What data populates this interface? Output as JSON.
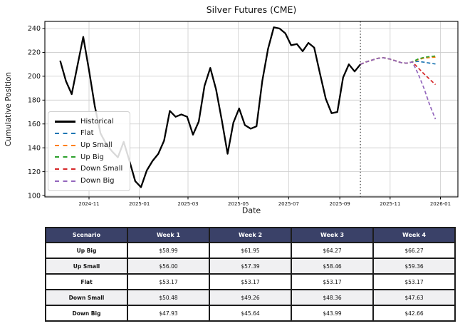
{
  "chart_data": {
    "type": "line",
    "title": "Silver Futures (CME)",
    "xlabel": "Date",
    "ylabel": "Cumulative Position",
    "ylim": [
      98,
      246
    ],
    "grid": true,
    "legend_position": "left-lower",
    "yticks": [
      100,
      120,
      140,
      160,
      180,
      200,
      220,
      240
    ],
    "xticks": [
      {
        "label": "2024-11",
        "date": "2024-11-01"
      },
      {
        "label": "2025-01",
        "date": "2025-01-01"
      },
      {
        "label": "2025-03",
        "date": "2025-03-01"
      },
      {
        "label": "2025-05",
        "date": "2025-05-01"
      },
      {
        "label": "2025-07",
        "date": "2025-07-01"
      },
      {
        "label": "2025-09",
        "date": "2025-09-01"
      },
      {
        "label": "2025-11",
        "date": "2025-11-01"
      },
      {
        "label": "2026-01",
        "date": "2026-01-01"
      }
    ],
    "forecast_start": "2025-09-26",
    "historical": {
      "name": "Historical",
      "color": "#000000",
      "dates": [
        "2024-09-27",
        "2024-10-04",
        "2024-10-11",
        "2024-10-18",
        "2024-10-25",
        "2024-11-01",
        "2024-11-08",
        "2024-11-15",
        "2024-11-22",
        "2024-11-29",
        "2024-12-06",
        "2024-12-13",
        "2024-12-20",
        "2024-12-27",
        "2025-01-03",
        "2025-01-10",
        "2025-01-17",
        "2025-01-24",
        "2025-01-31",
        "2025-02-07",
        "2025-02-14",
        "2025-02-21",
        "2025-02-28",
        "2025-03-07",
        "2025-03-14",
        "2025-03-21",
        "2025-03-28",
        "2025-04-04",
        "2025-04-11",
        "2025-04-18",
        "2025-04-25",
        "2025-05-02",
        "2025-05-09",
        "2025-05-16",
        "2025-05-23",
        "2025-05-30",
        "2025-06-06",
        "2025-06-13",
        "2025-06-20",
        "2025-06-27",
        "2025-07-04",
        "2025-07-11",
        "2025-07-18",
        "2025-07-25",
        "2025-08-01",
        "2025-08-08",
        "2025-08-15",
        "2025-08-22",
        "2025-08-29",
        "2025-09-05",
        "2025-09-12",
        "2025-09-19",
        "2025-09-26"
      ],
      "values": [
        213,
        196,
        185,
        209,
        233,
        205,
        175,
        152,
        143,
        137,
        132,
        145,
        129,
        112,
        107,
        121,
        129,
        135,
        146,
        171,
        166,
        168,
        166,
        151,
        162,
        192,
        207,
        189,
        163,
        135,
        161,
        173,
        159,
        156,
        158,
        196,
        223,
        241,
        240,
        236,
        226,
        227,
        221,
        228,
        224,
        202,
        181,
        169,
        170,
        199,
        210,
        204,
        210
      ]
    },
    "forecast": {
      "dates": [
        "2025-09-26",
        "2025-10-03",
        "2025-10-10",
        "2025-10-17",
        "2025-10-24",
        "2025-10-31",
        "2025-11-07",
        "2025-11-14",
        "2025-11-21",
        "2025-11-28",
        "2025-12-05",
        "2025-12-12",
        "2025-12-19",
        "2025-12-26"
      ],
      "common_values": [
        210,
        212,
        213.5,
        215,
        215.5,
        214.5,
        213,
        211.5,
        211,
        212
      ],
      "scenarios": [
        {
          "name": "Flat",
          "color": "#1f77b4",
          "tail": [
            212.5,
            211.8,
            211,
            210.3
          ]
        },
        {
          "name": "Up Small",
          "color": "#ff7f0e",
          "tail": [
            214,
            215.2,
            215.7,
            216
          ]
        },
        {
          "name": "Up Big",
          "color": "#2ca02c",
          "tail": [
            214.5,
            215.8,
            216.5,
            217
          ]
        },
        {
          "name": "Down Small",
          "color": "#d62728",
          "tail": [
            207,
            202,
            197.5,
            193
          ]
        },
        {
          "name": "Down Big",
          "color": "#9467bd",
          "tail": [
            202,
            190,
            176,
            164
          ]
        }
      ]
    },
    "legend": [
      {
        "label": "Historical",
        "color": "#000000",
        "style": "solid"
      },
      {
        "label": "Flat",
        "color": "#1f77b4",
        "style": "dashed"
      },
      {
        "label": "Up Small",
        "color": "#ff7f0e",
        "style": "dashed"
      },
      {
        "label": "Up Big",
        "color": "#2ca02c",
        "style": "dashed"
      },
      {
        "label": "Down Small",
        "color": "#d62728",
        "style": "dashed"
      },
      {
        "label": "Down Big",
        "color": "#9467bd",
        "style": "dashed"
      }
    ]
  },
  "table": {
    "header_bg": "#3a4168",
    "alt_row_bg": "#f0f0f2",
    "columns": [
      "Scenario",
      "Week 1",
      "Week 2",
      "Week 3",
      "Week 4"
    ],
    "rows": [
      {
        "scenario": "Up Big",
        "values": [
          "$58.99",
          "$61.95",
          "$64.27",
          "$66.27"
        ]
      },
      {
        "scenario": "Up Small",
        "values": [
          "$56.00",
          "$57.39",
          "$58.46",
          "$59.36"
        ]
      },
      {
        "scenario": "Flat",
        "values": [
          "$53.17",
          "$53.17",
          "$53.17",
          "$53.17"
        ]
      },
      {
        "scenario": "Down Small",
        "values": [
          "$50.48",
          "$49.26",
          "$48.36",
          "$47.63"
        ]
      },
      {
        "scenario": "Down Big",
        "values": [
          "$47.93",
          "$45.64",
          "$43.99",
          "$42.66"
        ]
      }
    ]
  }
}
